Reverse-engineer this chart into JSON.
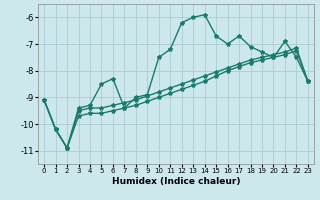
{
  "xlabel": "Humidex (Indice chaleur)",
  "background_color": "#cce8ec",
  "grid_color": "#aaccd4",
  "line_color": "#1a7a6e",
  "x_values": [
    0,
    1,
    2,
    3,
    4,
    5,
    6,
    7,
    8,
    9,
    10,
    11,
    12,
    13,
    14,
    15,
    16,
    17,
    18,
    19,
    20,
    21,
    22,
    23
  ],
  "line1_y": [
    -9.1,
    -10.2,
    -10.9,
    -9.4,
    -9.3,
    -8.5,
    -8.3,
    -9.4,
    -9.0,
    -8.9,
    -7.5,
    -7.2,
    -6.2,
    -6.0,
    -5.9,
    -6.7,
    -7.0,
    -6.7,
    -7.1,
    -7.3,
    -7.5,
    -6.9,
    -7.5,
    -8.4
  ],
  "line2_y": [
    -9.1,
    -10.2,
    -10.9,
    -9.5,
    -9.4,
    -9.4,
    -9.3,
    -9.2,
    -9.1,
    -8.95,
    -8.8,
    -8.65,
    -8.5,
    -8.35,
    -8.2,
    -8.05,
    -7.9,
    -7.75,
    -7.6,
    -7.5,
    -7.4,
    -7.3,
    -7.15,
    -8.4
  ],
  "line3_y": [
    -9.1,
    -10.2,
    -10.9,
    -9.7,
    -9.6,
    -9.6,
    -9.5,
    -9.4,
    -9.3,
    -9.15,
    -9.0,
    -8.85,
    -8.7,
    -8.55,
    -8.4,
    -8.2,
    -8.0,
    -7.85,
    -7.7,
    -7.6,
    -7.5,
    -7.4,
    -7.25,
    -8.4
  ],
  "ylim": [
    -11.5,
    -5.5
  ],
  "xlim": [
    -0.5,
    23.5
  ],
  "yticks": [
    -11,
    -10,
    -9,
    -8,
    -7,
    -6
  ],
  "xticks": [
    0,
    1,
    2,
    3,
    4,
    5,
    6,
    7,
    8,
    9,
    10,
    11,
    12,
    13,
    14,
    15,
    16,
    17,
    18,
    19,
    20,
    21,
    22,
    23
  ],
  "marker": "*",
  "markersize": 3,
  "linewidth": 1.0
}
